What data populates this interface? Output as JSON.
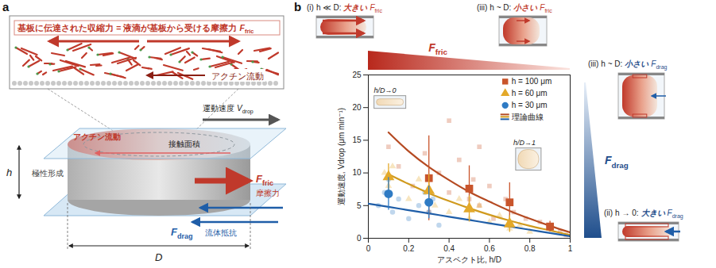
{
  "diagram": {
    "panel_label": "a",
    "inset_header": [
      {
        "text": "基板に伝達された収縮力"
      },
      {
        "text": "="
      },
      {
        "text": "液滴が基板から受ける摩擦力"
      },
      {
        "symbol": "F",
        "sub": "fric"
      }
    ],
    "inset_flow": "アクチン流動",
    "velocity": {
      "text": "運動速度",
      "symbol": "V",
      "sub": "drop"
    },
    "actin_flow": "アクチン流動",
    "contact_area": "接触面積",
    "friction": {
      "symbol": "F",
      "sub": "fric",
      "text": "摩擦力"
    },
    "polarity": "極性形成",
    "drag": {
      "symbol": "F",
      "sub": "drag",
      "text": "流体抵抗"
    },
    "height": "h",
    "diameter": "D"
  },
  "chart_data": {
    "panel_label": "b",
    "type": "scatter",
    "xlabel": "アスペクト比, h/D",
    "ylabel": "運動速度, Vdrop (μm min⁻¹)",
    "xlim": [
      0,
      1
    ],
    "xticks": [
      0,
      0.2,
      0.4,
      0.6,
      0.8,
      1
    ],
    "ylim": [
      0,
      25
    ],
    "yticks": [
      0,
      5,
      10,
      15,
      20,
      25
    ],
    "grid": false,
    "legend": "top-right",
    "series": [
      {
        "name": "h = 100 μm",
        "color": "#c9552c",
        "marker": "square",
        "x": [
          0.3,
          0.5,
          0.7,
          0.9
        ],
        "values": [
          9.2,
          7.6,
          5.5,
          1.8
        ],
        "errors": [
          6.5,
          3.5,
          3.0,
          0.8
        ],
        "raw_x": [
          0.1,
          0.15,
          0.22,
          0.28,
          0.3,
          0.35,
          0.4,
          0.4,
          0.45,
          0.5,
          0.52,
          0.55,
          0.55,
          0.6,
          0.62,
          0.68,
          0.72,
          0.78,
          0.85,
          0.9,
          0.95,
          0.98
        ],
        "raw_y": [
          14,
          11,
          8,
          13,
          4,
          10,
          7,
          18,
          12,
          6,
          9,
          5,
          14,
          8,
          3,
          6,
          4,
          3,
          2.5,
          1.5,
          1,
          0.5
        ]
      },
      {
        "name": "h = 60 μm",
        "color": "#e3a92a",
        "marker": "triangle",
        "x": [
          0.1,
          0.3,
          0.5,
          0.7
        ],
        "values": [
          9.4,
          7.3,
          4.5,
          2.2
        ],
        "errors": [
          2.0,
          2.5,
          2.0,
          1.3
        ],
        "raw_x": [
          0.08,
          0.1,
          0.12,
          0.2,
          0.25,
          0.3,
          0.33,
          0.4,
          0.45,
          0.5,
          0.55,
          0.6,
          0.65,
          0.7,
          0.75,
          0.8
        ],
        "raw_y": [
          10,
          8,
          11,
          6,
          9,
          7,
          5,
          4,
          6,
          3,
          5,
          2.5,
          3.5,
          1.5,
          2,
          1
        ]
      },
      {
        "name": "h = 30 μm",
        "color": "#2f7bc4",
        "marker": "circle",
        "x": [
          0.1,
          0.3
        ],
        "values": [
          6.8,
          5.5
        ],
        "errors": [
          2.5,
          2.5
        ],
        "raw_x": [
          0.05,
          0.08,
          0.1,
          0.12,
          0.15,
          0.2,
          0.25,
          0.28,
          0.3,
          0.32,
          0.35
        ],
        "raw_y": [
          5,
          7,
          9,
          4,
          6,
          3,
          5,
          7,
          4,
          6,
          2
        ]
      }
    ],
    "theory": {
      "name": "理論曲線",
      "curves": [
        {
          "color": "#b54a22",
          "line_style": "solid",
          "x": [
            0.1,
            0.2,
            0.3,
            0.4,
            0.5,
            0.6,
            0.7,
            0.8,
            0.9,
            1.0
          ],
          "values": [
            16.2,
            13.3,
            10.9,
            8.9,
            7.1,
            5.6,
            4.2,
            3.0,
            1.9,
            0.9
          ]
        },
        {
          "color": "#d09a1e",
          "line_style": "solid",
          "x": [
            0.1,
            0.2,
            0.3,
            0.4,
            0.5,
            0.6,
            0.7,
            0.8,
            0.9,
            1.0
          ],
          "values": [
            9.8,
            8.3,
            6.9,
            5.7,
            4.6,
            3.6,
            2.7,
            1.9,
            1.2,
            0.5
          ]
        },
        {
          "color": "#1f5ea8",
          "line_style": "solid",
          "x": [
            0,
            0.1,
            0.2,
            0.3,
            0.4,
            0.5,
            0.6,
            0.7,
            0.8,
            0.9,
            1.0
          ],
          "values": [
            5.3,
            4.8,
            4.3,
            3.8,
            3.3,
            2.8,
            2.3,
            1.8,
            1.3,
            0.8,
            0.3
          ]
        }
      ]
    },
    "insets": [
      "h/D→0",
      "h/D→1"
    ],
    "friction_scale": {
      "symbol": "F",
      "sub": "fric",
      "color": "#c0392b",
      "cases": [
        {
          "tag": "(i)",
          "condition": "h ≪ D:",
          "emphasis": "大きい",
          "symbol": "F",
          "sub": "fric"
        },
        {
          "tag": "(iii)",
          "condition": "h ~ D:",
          "emphasis": "小さい",
          "symbol": "F",
          "sub": "fric"
        }
      ]
    },
    "drag_scale": {
      "symbol": "F",
      "sub": "drag",
      "color": "#1f4e8c",
      "cases": [
        {
          "tag": "(iii)",
          "condition": "h ~ D:",
          "emphasis": "小さい",
          "symbol": "F",
          "sub": "drag"
        },
        {
          "tag": "(ii)",
          "condition": "h → 0:",
          "emphasis": "大きい",
          "symbol": "F",
          "sub": "drag"
        }
      ]
    }
  }
}
